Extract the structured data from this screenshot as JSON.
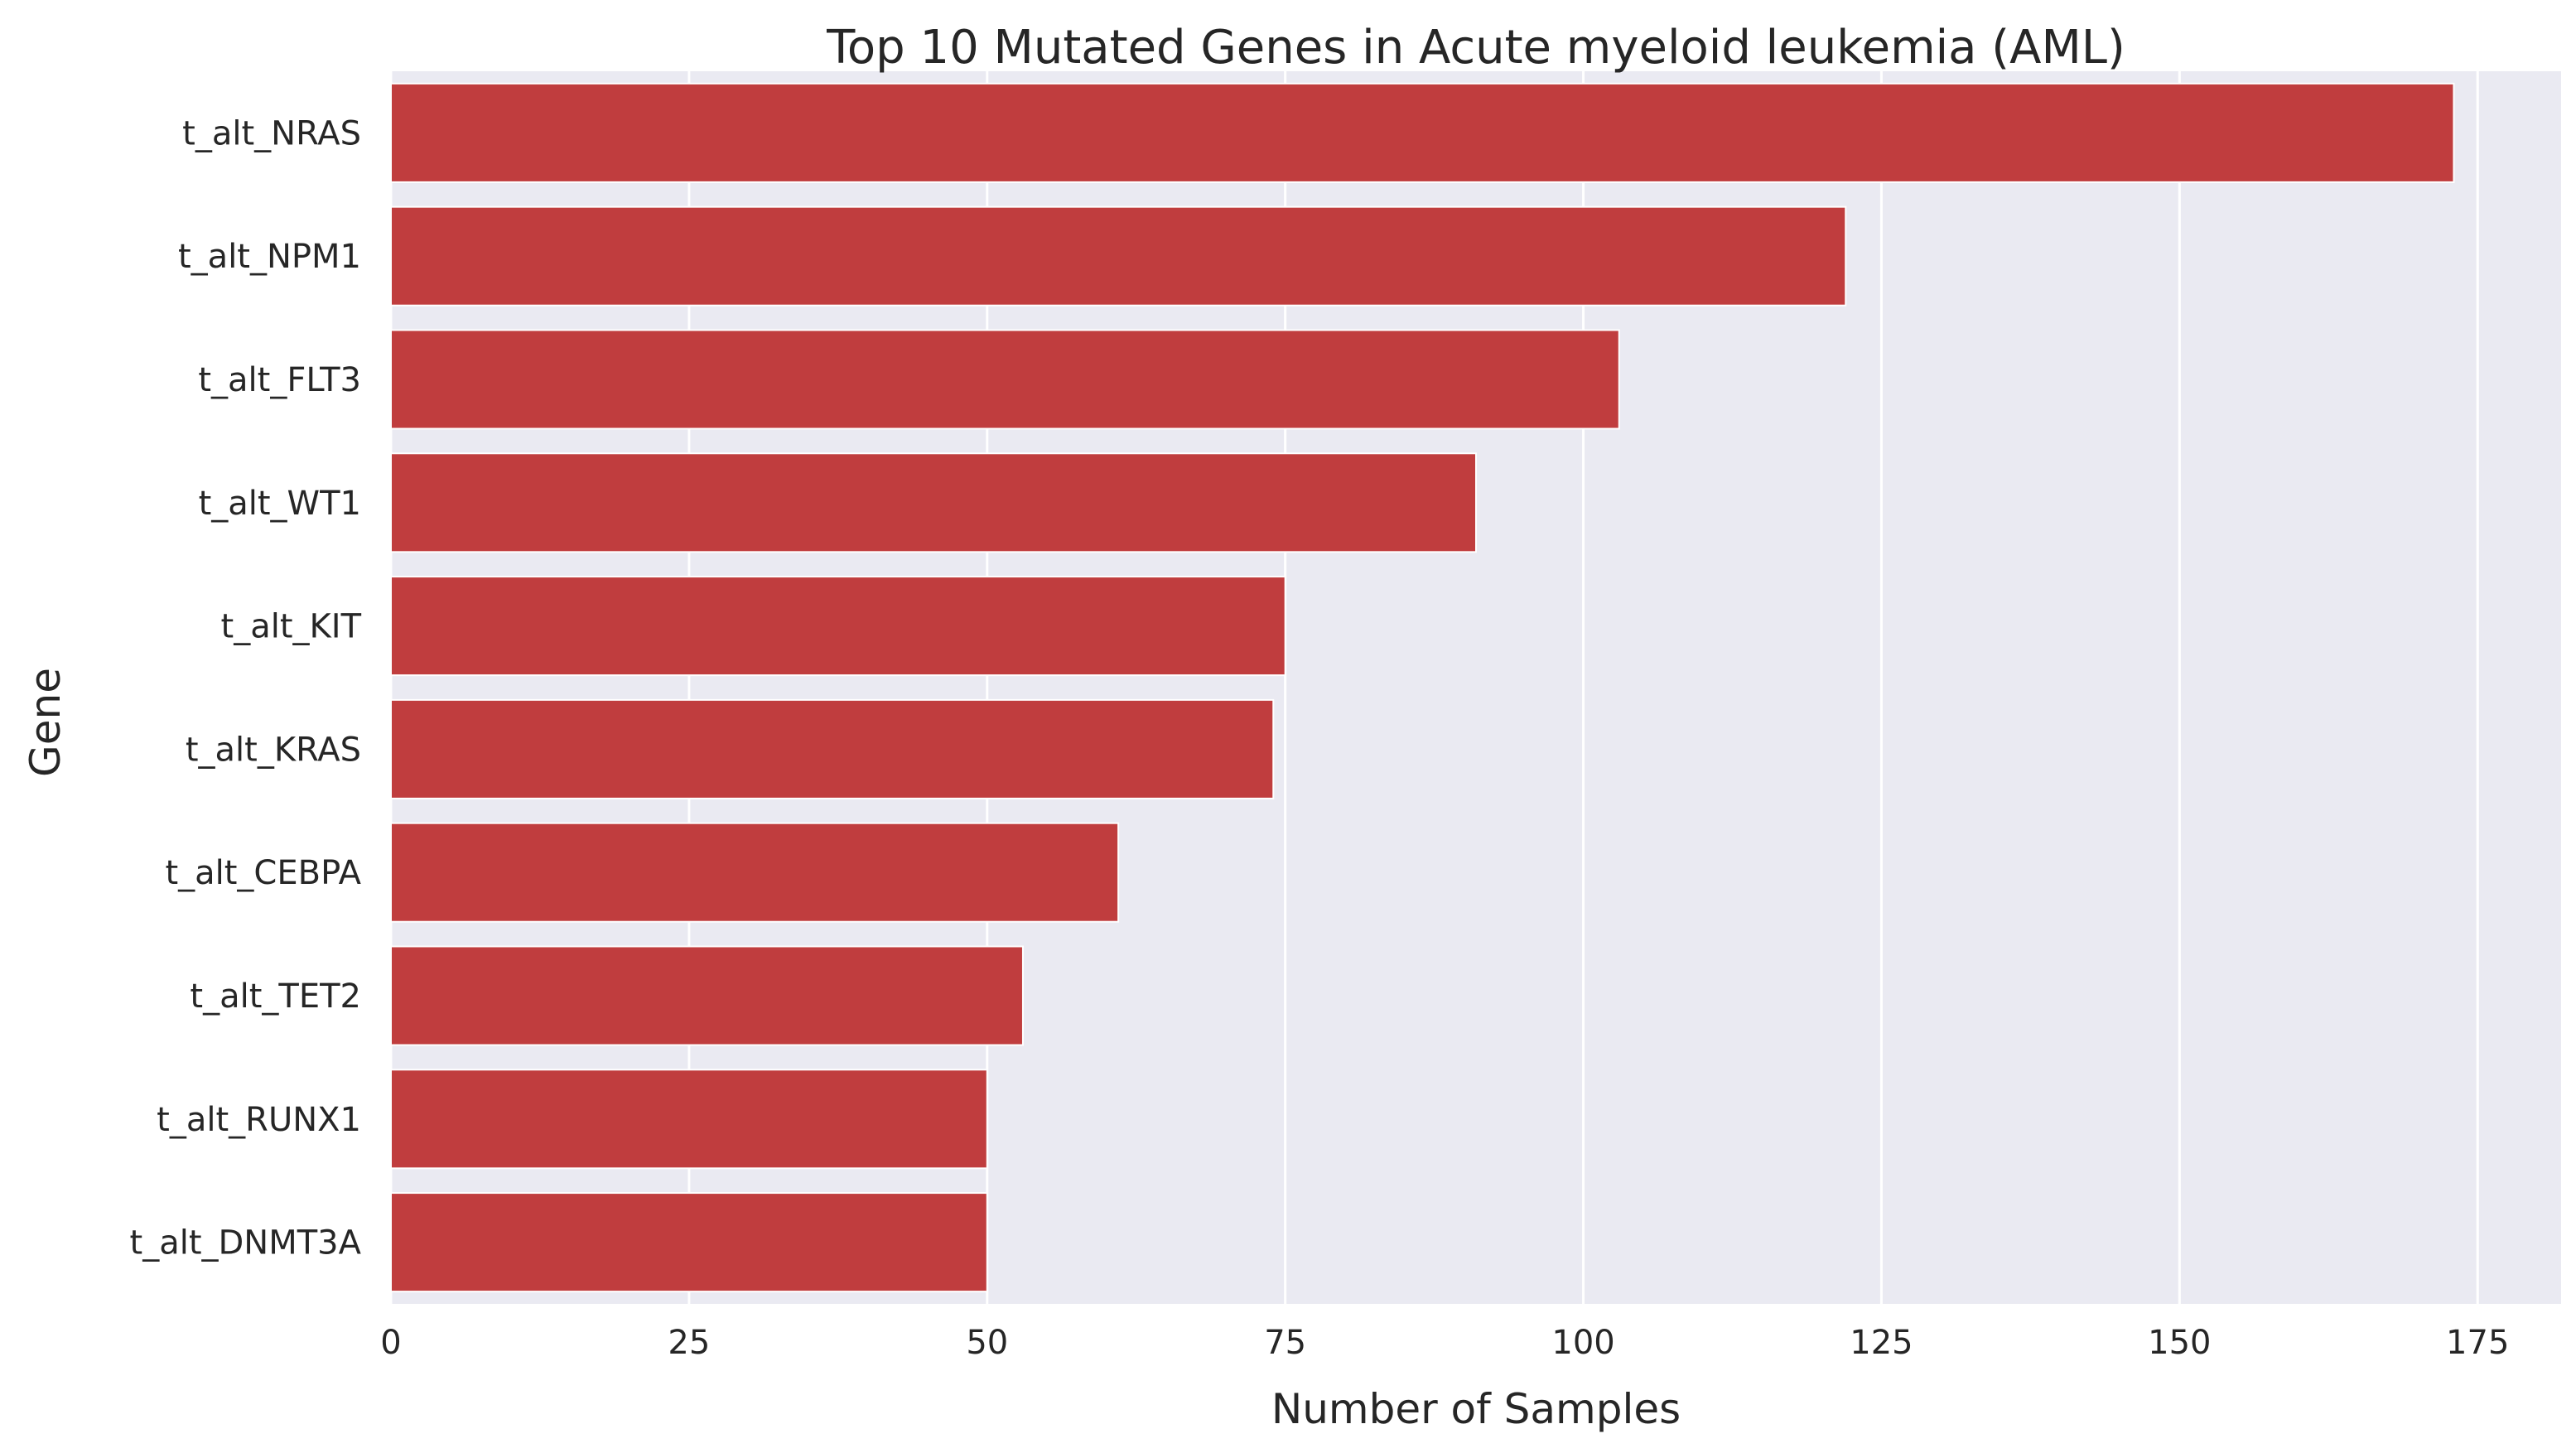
{
  "chart_data": {
    "type": "bar",
    "orientation": "horizontal",
    "title": "Top 10 Mutated Genes in Acute myeloid leukemia (AML)",
    "xlabel": "Number of Samples",
    "ylabel": "Gene",
    "categories": [
      "t_alt_NRAS",
      "t_alt_NPM1",
      "t_alt_FLT3",
      "t_alt_WT1",
      "t_alt_KIT",
      "t_alt_KRAS",
      "t_alt_CEBPA",
      "t_alt_TET2",
      "t_alt_RUNX1",
      "t_alt_DNMT3A"
    ],
    "values": [
      173,
      122,
      103,
      91,
      75,
      74,
      61,
      53,
      50,
      50
    ],
    "xlim": [
      0,
      182
    ],
    "xticks": [
      0,
      25,
      50,
      75,
      100,
      125,
      150,
      175
    ],
    "grid": true,
    "bar_color": "#c03d3e",
    "background_color": "#eaeaf2",
    "grid_color": "#ffffff"
  }
}
